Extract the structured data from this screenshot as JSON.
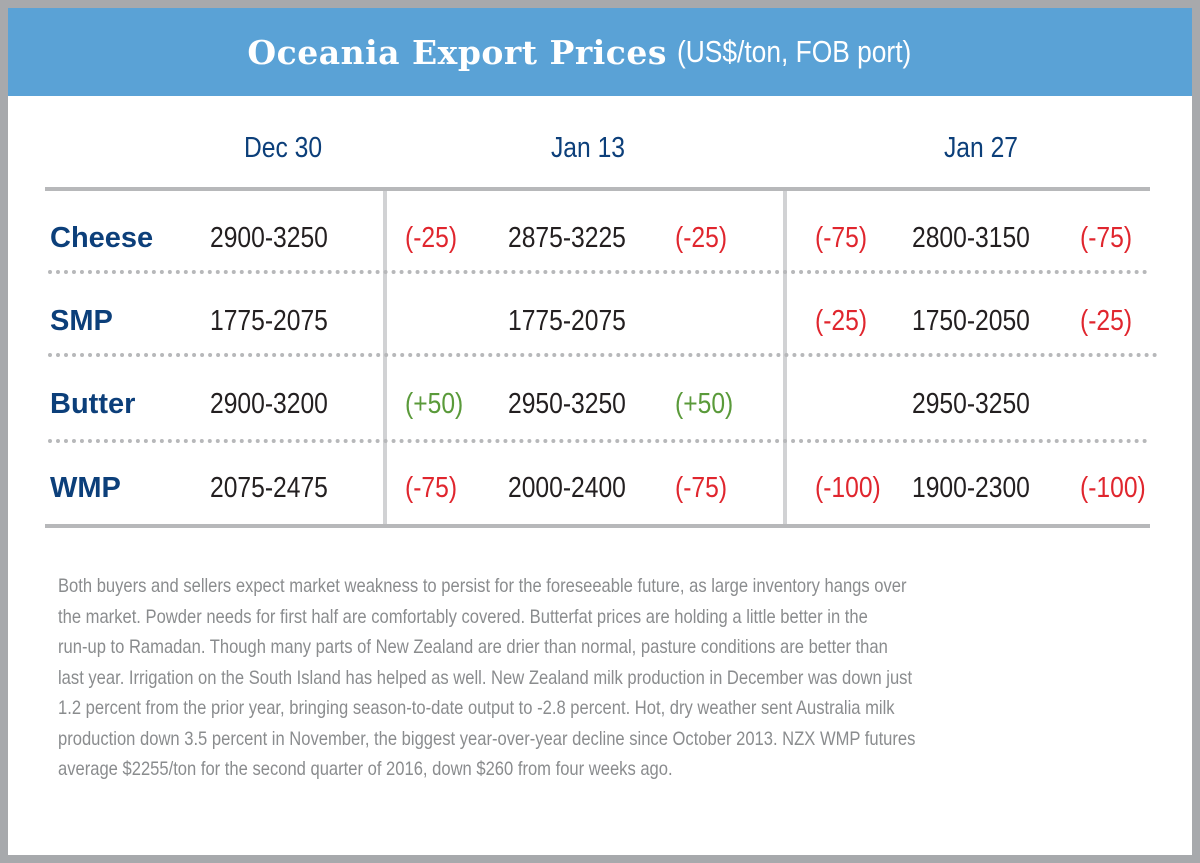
{
  "title": {
    "main": "Oceania Export Prices",
    "units": "(US$/ton, FOB port)"
  },
  "columns": [
    "Dec 30",
    "Jan 13",
    "Jan 27"
  ],
  "rows": [
    {
      "label": "Cheese",
      "dec30": "2900-3250",
      "chg1": "(-25)",
      "jan13": "2875-3225",
      "chg2": "(-25)",
      "chg3": "(-75)",
      "jan27": "2800-3150",
      "chg4": "(-75)"
    },
    {
      "label": "SMP",
      "dec30": "1775-2075",
      "chg1": "",
      "jan13": "1775-2075",
      "chg2": "",
      "chg3": "(-25)",
      "jan27": "1750-2050",
      "chg4": "(-25)"
    },
    {
      "label": "Butter",
      "dec30": "2900-3200",
      "chg1": "(+50)",
      "jan13": "2950-3250",
      "chg2": "(+50)",
      "chg3": "",
      "jan27": "2950-3250",
      "chg4": ""
    },
    {
      "label": "WMP",
      "dec30": "2075-2475",
      "chg1": "(-75)",
      "jan13": "2000-2400",
      "chg2": "(-75)",
      "chg3": "(-100)",
      "jan27": "1900-2300",
      "chg4": "(-100)"
    }
  ],
  "colors": {
    "banner": "#5aa2d6",
    "label": "#0c3f7a",
    "negative": "#e0262e",
    "positive": "#5a9a3a"
  },
  "paragraph": [
    "Both buyers and sellers expect market weakness to persist for the foreseeable future, as large inventory hangs over",
    "the market. Powder needs for first half are comfortably covered. Butterfat prices are holding a little better in the",
    "run-up to Ramadan. Though many parts of New Zealand are drier than normal, pasture conditions are better than",
    "last year. Irrigation on the South Island has helped as well. New Zealand milk production in December was down just",
    "1.2 percent from the prior year, bringing season-to-date output to -2.8 percent. Hot, dry weather sent Australia milk",
    "production down 3.5 percent in November, the biggest year-over-year decline since October 2013. NZX WMP futures",
    "average $2255/ton for the second quarter of 2016, down $260 from four weeks ago."
  ]
}
